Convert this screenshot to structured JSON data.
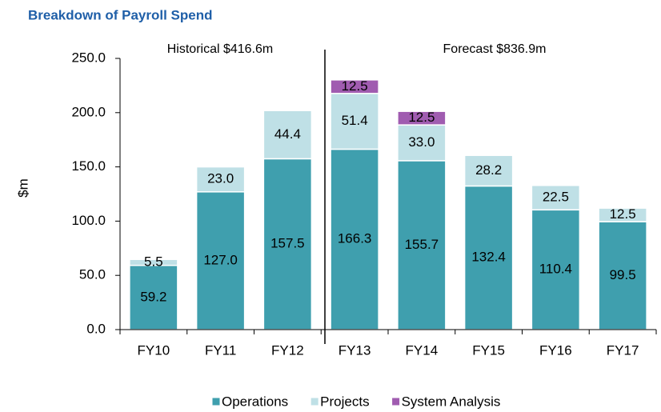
{
  "chart_data": {
    "type": "stacked_bar",
    "title": "Breakdown of Payroll Spend",
    "y_label": "$m",
    "annotations": [
      "Historical $416.6m",
      "Forecast $836.9m"
    ],
    "categories": [
      "FY10",
      "FY11",
      "FY12",
      "FY13",
      "FY14",
      "FY15",
      "FY16",
      "FY17"
    ],
    "series": [
      {
        "name": "Operations",
        "color": "#3f9fae",
        "values": [
          59.2,
          127,
          157.5,
          166.3,
          155.7,
          132.4,
          110.4,
          99.5
        ],
        "value_labels": [
          "59.2",
          "127.0",
          "157.5",
          "166.3",
          "155.7",
          "132.4",
          "110.4",
          "99.5"
        ]
      },
      {
        "name": "Projects",
        "color": "#bfe0e6",
        "values": [
          5.5,
          23,
          44.4,
          51.4,
          33,
          28.2,
          22.5,
          12.5
        ],
        "value_labels": [
          "5.5",
          "23.0",
          "44.4",
          "51.4",
          "33.0",
          "28.2",
          "22.5",
          "12.5"
        ]
      },
      {
        "name": "System Analysis",
        "color": "#a05cb0",
        "values": [
          null,
          null,
          null,
          12.5,
          12.5,
          null,
          null,
          null
        ],
        "value_labels": [
          null,
          null,
          null,
          "12.5",
          "12.5",
          null,
          null,
          null
        ]
      }
    ],
    "ylim": [
      0,
      250
    ],
    "yticks": [
      {
        "value": 0,
        "label": "0.0"
      },
      {
        "value": 50,
        "label": "50.0"
      },
      {
        "value": 100,
        "label": "100.0"
      },
      {
        "value": 150,
        "label": "150.0"
      },
      {
        "value": 200,
        "label": "200.0"
      },
      {
        "value": 250,
        "label": "250.0"
      }
    ],
    "legend": "bottom"
  }
}
